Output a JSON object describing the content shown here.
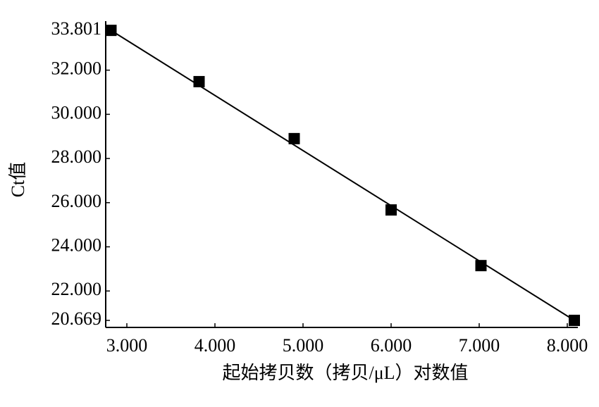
{
  "chart_data": {
    "type": "scatter",
    "x_label": "起始拷贝数（拷贝/μL）对数值",
    "y_label": "Ct值",
    "x": [
      2.82,
      3.82,
      4.9,
      6.0,
      7.02,
      8.08
    ],
    "series": [
      {
        "color": "#000000",
        "values": [
          33.801,
          31.48,
          28.9,
          25.67,
          23.15,
          20.67
        ]
      }
    ],
    "fit": {
      "x": [
        2.82,
        8.08
      ],
      "values": [
        33.801,
        20.669
      ],
      "color": "#000000"
    },
    "xlim": [
      2.76,
      8.12
    ],
    "ylim": [
      20.35,
      34.22
    ],
    "xticks": [
      {
        "value": 3,
        "label": "3.000"
      },
      {
        "value": 4,
        "label": "4.000"
      },
      {
        "value": 5,
        "label": "5.000"
      },
      {
        "value": 6,
        "label": "6.000"
      },
      {
        "value": 7,
        "label": "7.000"
      },
      {
        "value": 8,
        "label": "8.000"
      }
    ],
    "yticks": [
      20.669,
      {
        "value": 22,
        "label": "22.000"
      },
      {
        "value": 24,
        "label": "24.000"
      },
      {
        "value": 26,
        "label": "26.000"
      },
      {
        "value": 28,
        "label": "28.000"
      },
      {
        "value": 30,
        "label": "30.000"
      },
      {
        "value": 32,
        "label": "32.000"
      },
      33.801
    ],
    "grid": false
  }
}
